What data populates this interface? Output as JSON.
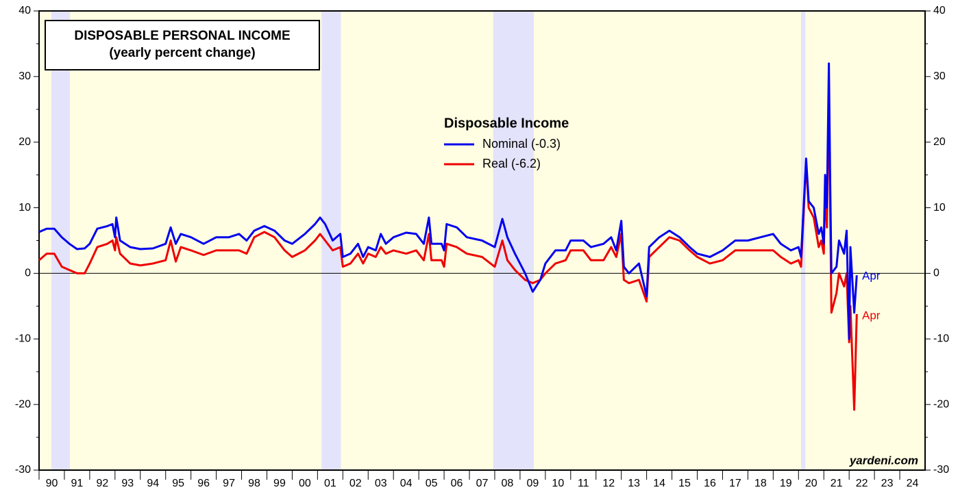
{
  "chart_data": {
    "type": "line",
    "title": "DISPOSABLE PERSONAL INCOME",
    "subtitle": "(yearly percent change)",
    "legend_title": "Disposable Income",
    "source": "yardeni.com",
    "x": [
      1990.0,
      1990.3,
      1990.6,
      1990.9,
      1991.2,
      1991.5,
      1991.8,
      1992.0,
      1992.3,
      1992.7,
      1992.9,
      1993.0,
      1993.05,
      1993.2,
      1993.6,
      1994.0,
      1994.5,
      1995.0,
      1995.2,
      1995.4,
      1995.6,
      1996.0,
      1996.5,
      1997.0,
      1997.5,
      1997.9,
      1998.2,
      1998.5,
      1998.9,
      1999.3,
      1999.7,
      2000.0,
      2000.5,
      2000.9,
      2001.1,
      2001.3,
      2001.6,
      2001.9,
      2002.0,
      2002.3,
      2002.6,
      2002.8,
      2003.0,
      2003.3,
      2003.5,
      2003.7,
      2004.0,
      2004.5,
      2004.9,
      2005.2,
      2005.4,
      2005.5,
      2005.9,
      2006.0,
      2006.1,
      2006.5,
      2006.9,
      2007.5,
      2008.0,
      2008.3,
      2008.5,
      2008.8,
      2009.2,
      2009.5,
      2009.8,
      2010.0,
      2010.4,
      2010.8,
      2011.0,
      2011.5,
      2011.8,
      2012.3,
      2012.6,
      2012.8,
      2013.0,
      2013.1,
      2013.3,
      2013.7,
      2014.0,
      2014.1,
      2014.5,
      2014.9,
      2015.3,
      2015.7,
      2016.0,
      2016.5,
      2017.0,
      2017.5,
      2018.0,
      2018.5,
      2019.0,
      2019.3,
      2019.7,
      2020.0,
      2020.1,
      2020.3,
      2020.4,
      2020.6,
      2020.8,
      2020.9,
      2021.0,
      2021.05,
      2021.12,
      2021.2,
      2021.25,
      2021.3,
      2021.5,
      2021.6,
      2021.8,
      2021.9,
      2022.0,
      2022.05,
      2022.2,
      2022.3
    ],
    "series": [
      {
        "name": "Nominal (-0.3)",
        "color": "#0000ee",
        "values": [
          6.3,
          6.8,
          6.8,
          5.5,
          4.5,
          3.7,
          3.8,
          4.5,
          6.8,
          7.2,
          7.5,
          5.5,
          8.5,
          5,
          4,
          3.7,
          3.8,
          4.5,
          7,
          4.5,
          6,
          5.5,
          4.5,
          5.5,
          5.5,
          6,
          5,
          6.5,
          7.2,
          6.5,
          5,
          4.5,
          6,
          7.5,
          8.5,
          7.5,
          5,
          6,
          2.5,
          3,
          4.5,
          2.5,
          4,
          3.5,
          6,
          4.5,
          5.5,
          6.2,
          6,
          4.5,
          8.5,
          4.5,
          4.5,
          3.5,
          7.5,
          7,
          5.5,
          5,
          4,
          8.3,
          5.5,
          3,
          0,
          -2.8,
          -1,
          1.5,
          3.5,
          3.5,
          5,
          5,
          4,
          4.5,
          5.5,
          3.5,
          8,
          1,
          0,
          1.5,
          -3.5,
          4,
          5.5,
          6.5,
          5.5,
          4,
          3,
          2.5,
          3.5,
          5,
          5,
          5.5,
          6,
          4.5,
          3.5,
          4,
          2.5,
          17.5,
          11,
          10,
          6,
          7,
          4.5,
          15,
          10,
          32,
          14,
          0,
          1,
          5,
          3,
          6.5,
          -10,
          4,
          -6,
          -0.3
        ]
      },
      {
        "name": "Real (-6.2)",
        "color": "#ee0000",
        "values": [
          2,
          3,
          3,
          1,
          0.5,
          0,
          0,
          1.5,
          4,
          4.5,
          5,
          3.5,
          5.5,
          3,
          1.5,
          1.2,
          1.5,
          2,
          5,
          1.8,
          4,
          3.5,
          2.8,
          3.5,
          3.5,
          3.5,
          3,
          5.5,
          6.3,
          5.5,
          3.5,
          2.5,
          3.5,
          5,
          6,
          5,
          3.5,
          4,
          1,
          1.5,
          3,
          1.5,
          3,
          2.5,
          4,
          3,
          3.5,
          3,
          3.5,
          2,
          6,
          2,
          2,
          1,
          4.5,
          4,
          3,
          2.5,
          1,
          5,
          2,
          0.5,
          -1,
          -1.5,
          -1,
          0,
          1.5,
          2,
          3.5,
          3.5,
          2,
          2,
          4,
          2.5,
          6,
          -1,
          -1.5,
          -1,
          -4.3,
          2.5,
          4,
          5.5,
          5,
          3.5,
          2.5,
          1.5,
          2,
          3.5,
          3.5,
          3.5,
          3.5,
          2.5,
          1.5,
          2,
          1,
          17,
          10,
          8.5,
          4,
          5,
          3,
          13,
          7,
          29,
          10,
          -6,
          -3,
          0,
          -2,
          0,
          -10.5,
          -5,
          -20.8,
          -6.2
        ]
      }
    ],
    "annotations": [
      "Apr",
      "Apr"
    ],
    "recessions": [
      [
        1990.49,
        1991.22
      ],
      [
        2001.16,
        2001.92
      ],
      [
        2007.94,
        2009.54
      ],
      [
        2020.1,
        2020.27
      ]
    ],
    "xlim": [
      1990,
      2025
    ],
    "ylim": [
      -30,
      40
    ],
    "yticks": [
      -30,
      -20,
      -10,
      0,
      10,
      20,
      30,
      40
    ],
    "xticks": [
      {
        "value": 1990,
        "label": "90"
      },
      {
        "value": 1991,
        "label": "91"
      },
      {
        "value": 1992,
        "label": "92"
      },
      {
        "value": 1993,
        "label": "93"
      },
      {
        "value": 1994,
        "label": "94"
      },
      {
        "value": 1995,
        "label": "95"
      },
      {
        "value": 1996,
        "label": "96"
      },
      {
        "value": 1997,
        "label": "97"
      },
      {
        "value": 1998,
        "label": "98"
      },
      {
        "value": 1999,
        "label": "99"
      },
      {
        "value": 2000,
        "label": "00"
      },
      {
        "value": 2001,
        "label": "01"
      },
      {
        "value": 2002,
        "label": "02"
      },
      {
        "value": 2003,
        "label": "03"
      },
      {
        "value": 2004,
        "label": "04"
      },
      {
        "value": 2005,
        "label": "05"
      },
      {
        "value": 2006,
        "label": "06"
      },
      {
        "value": 2007,
        "label": "07"
      },
      {
        "value": 2008,
        "label": "08"
      },
      {
        "value": 2009,
        "label": "09"
      },
      {
        "value": 2010,
        "label": "10"
      },
      {
        "value": 2011,
        "label": "11"
      },
      {
        "value": 2012,
        "label": "12"
      },
      {
        "value": 2013,
        "label": "13"
      },
      {
        "value": 2014,
        "label": "14"
      },
      {
        "value": 2015,
        "label": "15"
      },
      {
        "value": 2016,
        "label": "16"
      },
      {
        "value": 2017,
        "label": "17"
      },
      {
        "value": 2018,
        "label": "18"
      },
      {
        "value": 2019,
        "label": "19"
      },
      {
        "value": 2020,
        "label": "20"
      },
      {
        "value": 2021,
        "label": "21"
      },
      {
        "value": 2022,
        "label": "22"
      },
      {
        "value": 2023,
        "label": "23"
      },
      {
        "value": 2024,
        "label": "24"
      }
    ],
    "background": "#fffde2",
    "recession_color": "#e3e3fb"
  }
}
